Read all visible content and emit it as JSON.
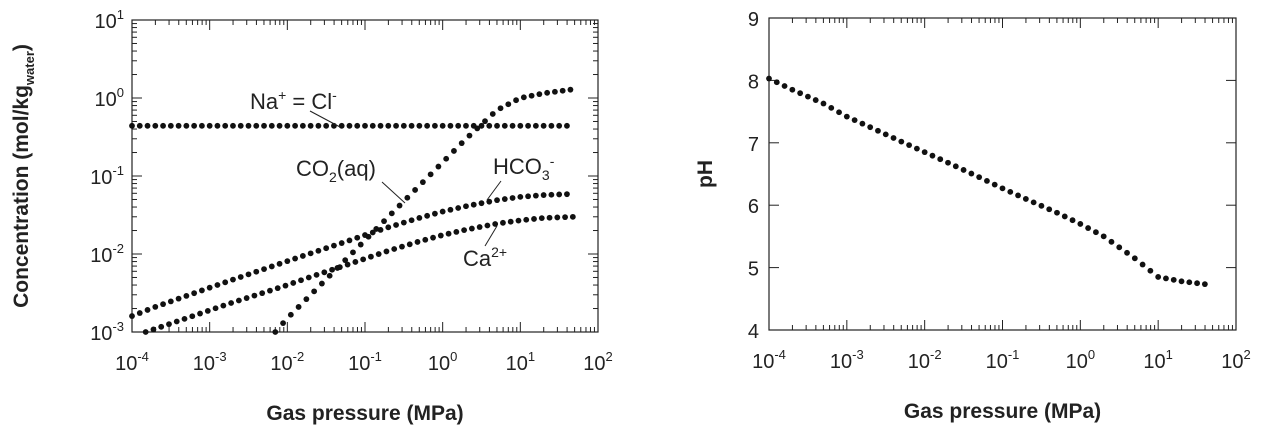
{
  "chart_data": [
    {
      "type": "scatter",
      "xlabel": "Gas pressure (MPa)",
      "ylabel": "Concentration (mol/kg_water)",
      "xscale": "log",
      "yscale": "log",
      "xlim": [
        0.0001,
        100
      ],
      "ylim": [
        0.001,
        10
      ],
      "xtick_labels": [
        "10-4",
        "10-3",
        "10-2",
        "10-1",
        "100",
        "101",
        "102"
      ],
      "ytick_labels": [
        "10-3",
        "10-2",
        "10-1",
        "100",
        "101"
      ],
      "annotations": [
        "Na+ = Cl-",
        "CO2(aq)",
        "HCO3-",
        "Ca2+"
      ],
      "series": [
        {
          "x": [
            0.0001,
            0.0002,
            0.0005,
            0.001,
            0.005,
            0.01,
            0.05,
            0.1,
            0.5,
            1,
            5,
            10,
            50
          ],
          "y": [
            0.44,
            0.44,
            0.44,
            0.44,
            0.44,
            0.44,
            0.44,
            0.44,
            0.44,
            0.44,
            0.44,
            0.44,
            0.44
          ]
        },
        {
          "x": [
            0.007,
            0.01,
            0.02,
            0.05,
            0.1,
            0.2,
            0.5,
            1,
            2,
            5,
            10,
            20,
            50
          ],
          "y": [
            0.001,
            0.0015,
            0.003,
            0.0075,
            0.015,
            0.03,
            0.075,
            0.15,
            0.3,
            0.7,
            1.0,
            1.15,
            1.3
          ]
        },
        {
          "x": [
            0.0001,
            0.0002,
            0.0005,
            0.001,
            0.002,
            0.005,
            0.01,
            0.02,
            0.05,
            0.1,
            0.2,
            0.5,
            1,
            2,
            5,
            10,
            20,
            50
          ],
          "y": [
            0.0016,
            0.0021,
            0.0029,
            0.0037,
            0.0047,
            0.0064,
            0.0081,
            0.0102,
            0.0138,
            0.0175,
            0.022,
            0.029,
            0.035,
            0.041,
            0.049,
            0.054,
            0.057,
            0.059
          ]
        },
        {
          "x": [
            0.00015,
            0.0002,
            0.0005,
            0.001,
            0.002,
            0.005,
            0.01,
            0.02,
            0.05,
            0.1,
            0.2,
            0.5,
            1,
            2,
            5,
            10,
            20,
            50
          ],
          "y": [
            0.001,
            0.0011,
            0.0015,
            0.0019,
            0.0024,
            0.0032,
            0.004,
            0.0051,
            0.0069,
            0.0087,
            0.011,
            0.0145,
            0.0175,
            0.0205,
            0.0245,
            0.027,
            0.029,
            0.03
          ]
        }
      ]
    },
    {
      "type": "scatter",
      "xlabel": "Gas pressure (MPa)",
      "ylabel": "pH",
      "xscale": "log",
      "xlim": [
        0.0001,
        100
      ],
      "ylim": [
        4,
        9
      ],
      "xtick_labels": [
        "10-4",
        "10-3",
        "10-2",
        "10-1",
        "100",
        "101",
        "102"
      ],
      "ytick_labels": [
        "4",
        "5",
        "6",
        "7",
        "8",
        "9"
      ],
      "series": [
        {
          "x": [
            0.0001,
            0.0002,
            0.0005,
            0.001,
            0.002,
            0.005,
            0.01,
            0.02,
            0.05,
            0.1,
            0.2,
            0.5,
            1,
            2,
            5,
            10,
            20,
            50
          ],
          "y": [
            8.03,
            7.85,
            7.63,
            7.42,
            7.25,
            7.02,
            6.85,
            6.68,
            6.45,
            6.27,
            6.1,
            5.88,
            5.7,
            5.5,
            5.15,
            4.85,
            4.78,
            4.72
          ]
        }
      ]
    }
  ]
}
